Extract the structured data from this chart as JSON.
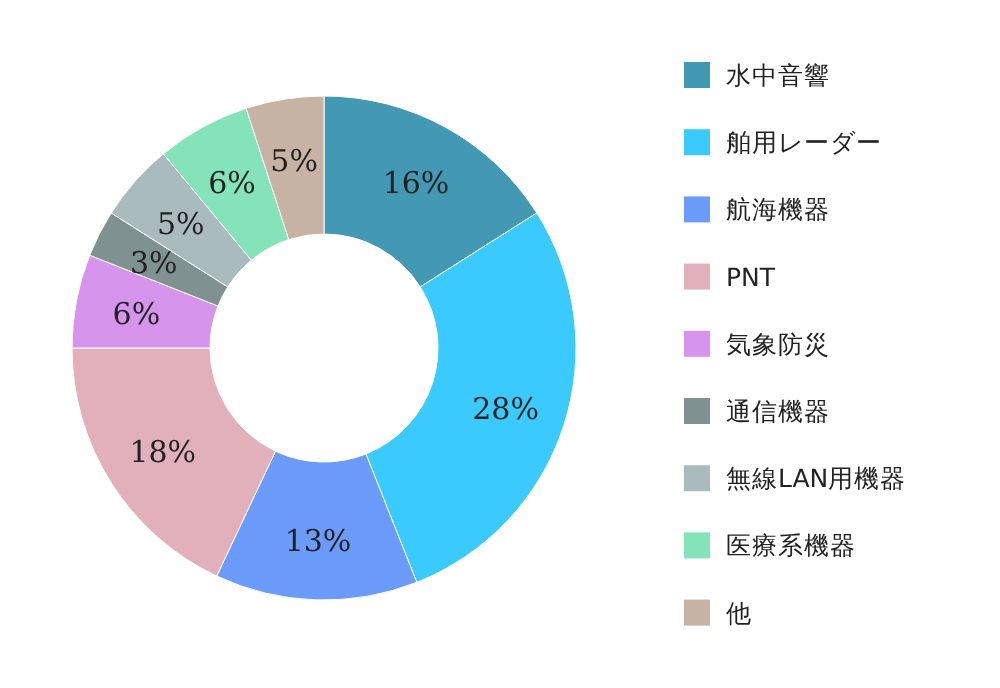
{
  "chart_data": {
    "type": "donut",
    "categories": [
      "水中音響",
      "舶用レーダー",
      "航海機器",
      "PNT",
      "気象防災",
      "通信機器",
      "無線LAN用機器",
      "医療系機器",
      "他"
    ],
    "values": [
      16,
      28,
      13,
      18,
      6,
      3,
      5,
      6,
      5
    ],
    "colors": [
      "#4398b4",
      "#3bcafd",
      "#6b9cfb",
      "#e2b0bb",
      "#d694ec",
      "#7f9190",
      "#a9bbbd",
      "#84e3b8",
      "#c6b3a3"
    ],
    "value_labels": [
      "16%",
      "28%",
      "13%",
      "18%",
      "6%",
      "3%",
      "5%",
      "6%",
      "5%"
    ],
    "legend": "right"
  }
}
